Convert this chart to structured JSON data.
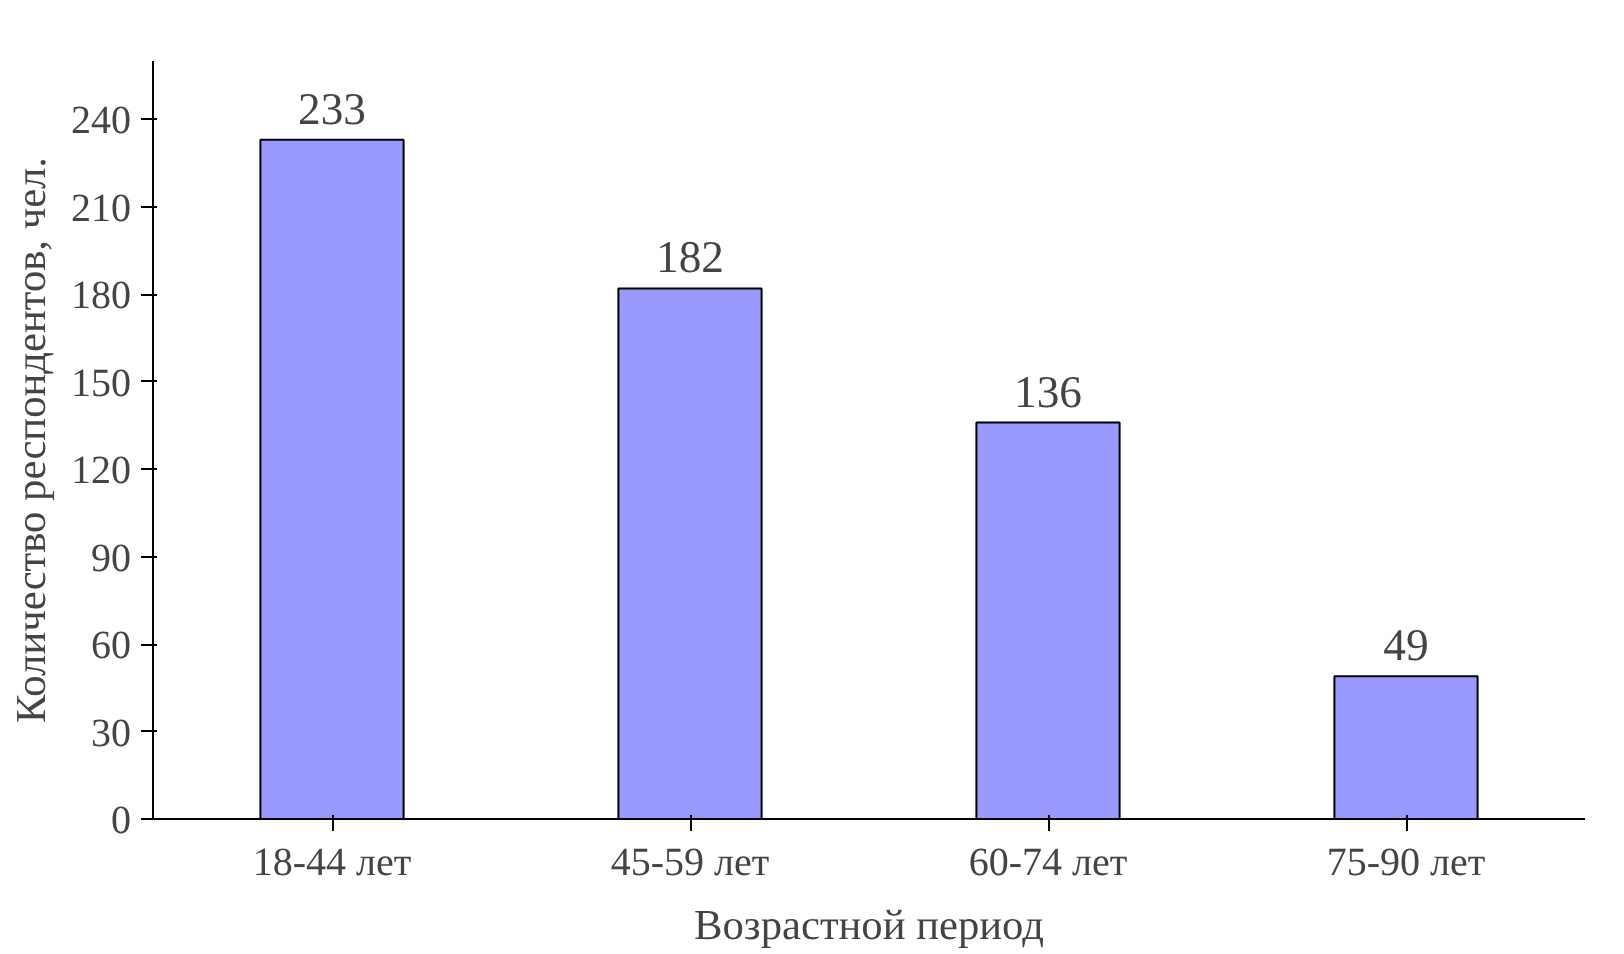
{
  "chart_data": {
    "type": "bar",
    "categories": [
      "18-44 лет",
      "45-59 лет",
      "60-74 лет",
      "75-90 лет"
    ],
    "values": [
      233,
      182,
      136,
      49
    ],
    "color": "#9999ff",
    "xlabel": "Возрастной период",
    "ylabel": "Количество респондентов, чел.",
    "ylim": [
      0,
      260
    ],
    "yticks": [
      0,
      30,
      60,
      90,
      120,
      150,
      180,
      210,
      240
    ],
    "data_labels": true,
    "grid": false
  }
}
